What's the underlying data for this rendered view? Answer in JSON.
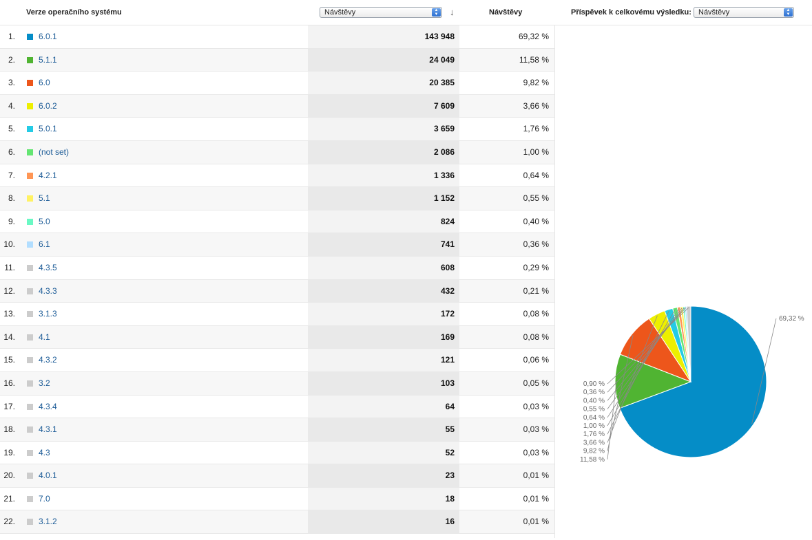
{
  "header": {
    "dimension_label": "Verze operačního systému",
    "metric_select_value": "Návštěvy",
    "metric_column_label": "Návštěvy",
    "contribution_label": "Příspěvek k celkovému výsledku:",
    "contribution_select_value": "Návštěvy"
  },
  "rows": [
    {
      "index": "1.",
      "name": "6.0.1",
      "visits": "143 948",
      "percent": "69,32 %",
      "color": "#058dc7"
    },
    {
      "index": "2.",
      "name": "5.1.1",
      "visits": "24 049",
      "percent": "11,58 %",
      "color": "#50b432"
    },
    {
      "index": "3.",
      "name": "6.0",
      "visits": "20 385",
      "percent": "9,82 %",
      "color": "#ed561b"
    },
    {
      "index": "4.",
      "name": "6.0.2",
      "visits": "7 609",
      "percent": "3,66 %",
      "color": "#edef00"
    },
    {
      "index": "5.",
      "name": "5.0.1",
      "visits": "3 659",
      "percent": "1,76 %",
      "color": "#24cbe5"
    },
    {
      "index": "6.",
      "name": "(not set)",
      "visits": "2 086",
      "percent": "1,00 %",
      "color": "#64e572"
    },
    {
      "index": "7.",
      "name": "4.2.1",
      "visits": "1 336",
      "percent": "0,64 %",
      "color": "#ff9655"
    },
    {
      "index": "8.",
      "name": "5.1",
      "visits": "1 152",
      "percent": "0,55 %",
      "color": "#fff263"
    },
    {
      "index": "9.",
      "name": "5.0",
      "visits": "824",
      "percent": "0,40 %",
      "color": "#6af9c4"
    },
    {
      "index": "10.",
      "name": "6.1",
      "visits": "741",
      "percent": "0,36 %",
      "color": "#b2deff"
    },
    {
      "index": "11.",
      "name": "4.3.5",
      "visits": "608",
      "percent": "0,29 %",
      "color": "#cccccc"
    },
    {
      "index": "12.",
      "name": "4.3.3",
      "visits": "432",
      "percent": "0,21 %",
      "color": "#cccccc"
    },
    {
      "index": "13.",
      "name": "3.1.3",
      "visits": "172",
      "percent": "0,08 %",
      "color": "#cccccc"
    },
    {
      "index": "14.",
      "name": "4.1",
      "visits": "169",
      "percent": "0,08 %",
      "color": "#cccccc"
    },
    {
      "index": "15.",
      "name": "4.3.2",
      "visits": "121",
      "percent": "0,06 %",
      "color": "#cccccc"
    },
    {
      "index": "16.",
      "name": "3.2",
      "visits": "103",
      "percent": "0,05 %",
      "color": "#cccccc"
    },
    {
      "index": "17.",
      "name": "4.3.4",
      "visits": "64",
      "percent": "0,03 %",
      "color": "#cccccc"
    },
    {
      "index": "18.",
      "name": "4.3.1",
      "visits": "55",
      "percent": "0,03 %",
      "color": "#cccccc"
    },
    {
      "index": "19.",
      "name": "4.3",
      "visits": "52",
      "percent": "0,03 %",
      "color": "#cccccc"
    },
    {
      "index": "20.",
      "name": "4.0.1",
      "visits": "23",
      "percent": "0,01 %",
      "color": "#cccccc"
    },
    {
      "index": "21.",
      "name": "7.0",
      "visits": "18",
      "percent": "0,01 %",
      "color": "#cccccc"
    },
    {
      "index": "22.",
      "name": "3.1.2",
      "visits": "16",
      "percent": "0,01 %",
      "color": "#cccccc"
    }
  ],
  "chart_data": {
    "type": "pie",
    "slices": [
      {
        "label": "69,32 %",
        "value": 69.32,
        "color": "#058dc7"
      },
      {
        "label": "11,58 %",
        "value": 11.58,
        "color": "#50b432"
      },
      {
        "label": "9,82 %",
        "value": 9.82,
        "color": "#ed561b"
      },
      {
        "label": "3,66 %",
        "value": 3.66,
        "color": "#edef00"
      },
      {
        "label": "1,76 %",
        "value": 1.76,
        "color": "#24cbe5"
      },
      {
        "label": "1,00 %",
        "value": 1.0,
        "color": "#64e572"
      },
      {
        "label": "0,64 %",
        "value": 0.64,
        "color": "#ff9655"
      },
      {
        "label": "0,55 %",
        "value": 0.55,
        "color": "#fff263"
      },
      {
        "label": "0,40 %",
        "value": 0.4,
        "color": "#6af9c4"
      },
      {
        "label": "0,36 %",
        "value": 0.36,
        "color": "#b2deff"
      },
      {
        "label": "0,90 %",
        "value": 0.9,
        "color": "#cccccc"
      }
    ]
  }
}
